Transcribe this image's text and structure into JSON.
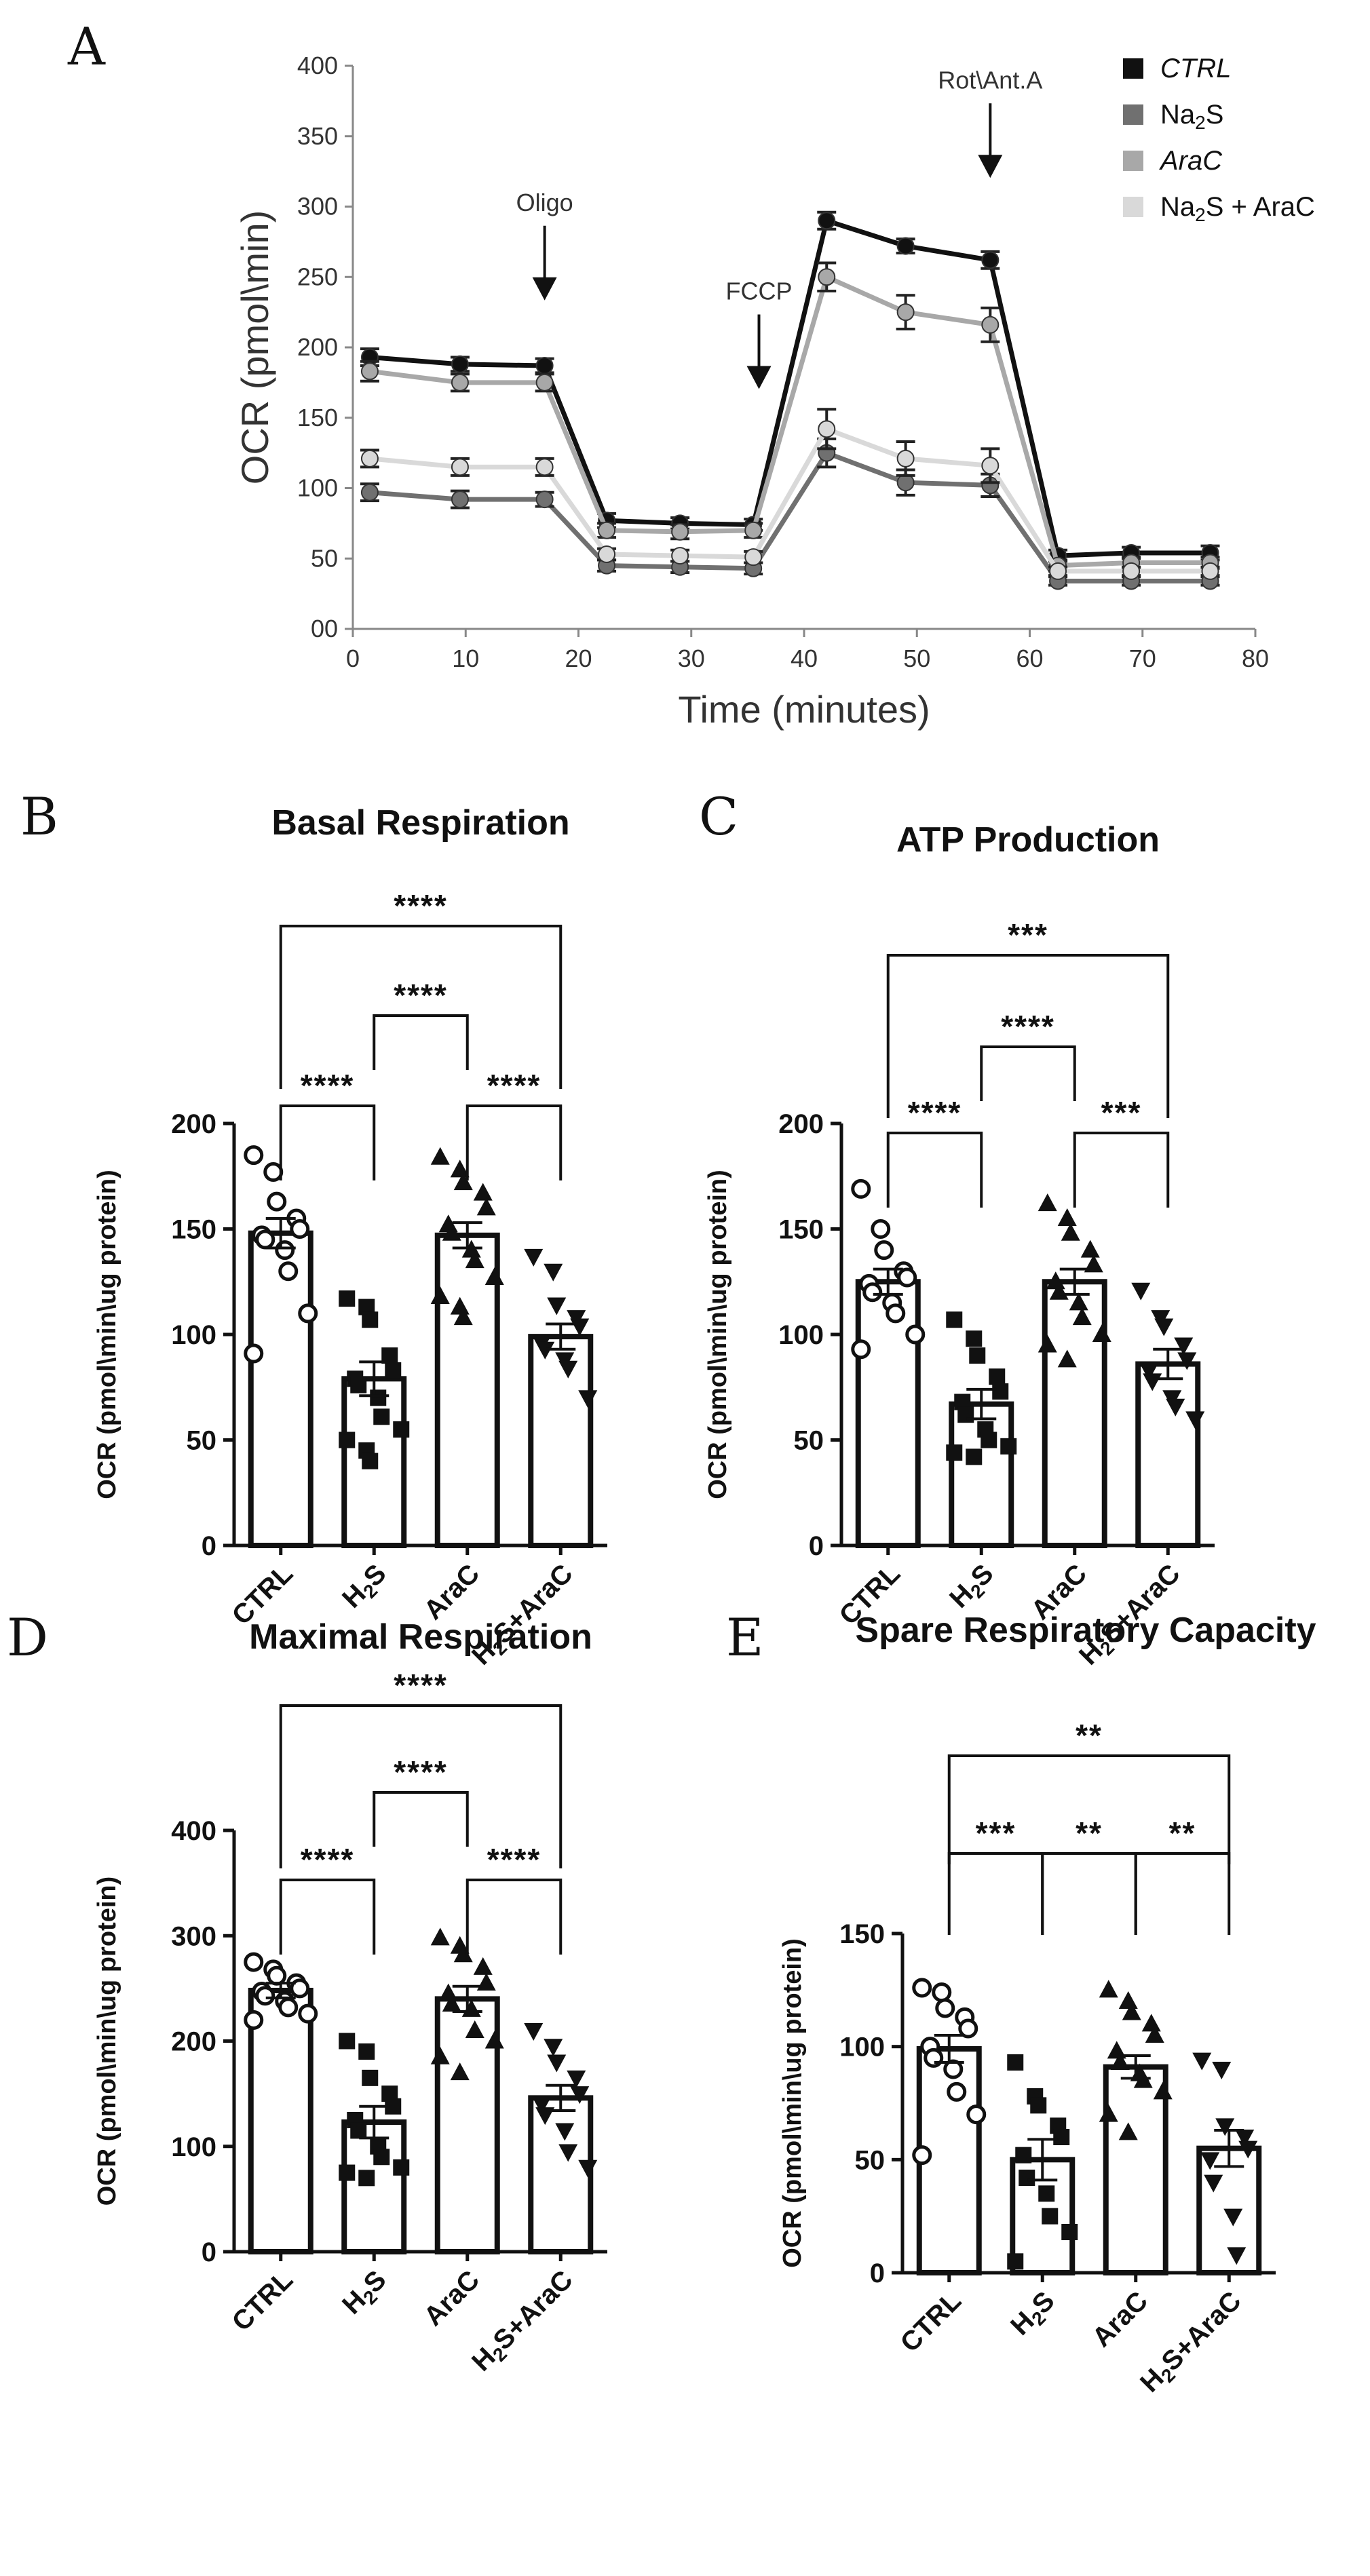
{
  "chart_data": [
    {
      "panel": "A",
      "type": "line",
      "title": "",
      "xlabel": "Time (minutes)",
      "ylabel": "OCR (pmol\\min)",
      "xlim": [
        0,
        80
      ],
      "ylim": [
        0,
        400
      ],
      "xticks": [
        "0",
        "10",
        "20",
        "30",
        "40",
        "50",
        "60",
        "70",
        "80"
      ],
      "yticks": [
        "00",
        "50",
        "100",
        "150",
        "200",
        "250",
        "300",
        "350",
        "400"
      ],
      "x": [
        1.5,
        9.5,
        17,
        22.5,
        29,
        35.5,
        42,
        49,
        56.5,
        62.5,
        69,
        76
      ],
      "legend_position": "top-right",
      "series": [
        {
          "name": "CTRL",
          "name_main": "CTRL",
          "name_sub": "",
          "name_tail": "",
          "italic": true,
          "color": "#111111",
          "values": [
            193,
            188,
            187,
            77,
            75,
            74,
            290,
            272,
            262,
            52,
            54,
            54
          ],
          "errors": [
            6,
            5,
            5,
            5,
            4,
            4,
            6,
            5,
            6,
            4,
            4,
            5
          ]
        },
        {
          "name": "Na2S",
          "name_main": "Na",
          "name_sub": "2",
          "name_tail": "S",
          "italic": false,
          "color": "#707070",
          "values": [
            97,
            92,
            92,
            45,
            44,
            43,
            125,
            104,
            102,
            34,
            34,
            34
          ],
          "errors": [
            6,
            6,
            5,
            4,
            4,
            4,
            10,
            9,
            8,
            3,
            3,
            3
          ]
        },
        {
          "name": "AraC",
          "name_main": "AraC",
          "name_sub": "",
          "name_tail": "",
          "italic": true,
          "color": "#a8a8a8",
          "values": [
            183,
            175,
            175,
            70,
            69,
            70,
            250,
            225,
            216,
            45,
            47,
            47
          ],
          "errors": [
            7,
            6,
            6,
            5,
            5,
            5,
            10,
            12,
            12,
            4,
            4,
            4
          ]
        },
        {
          "name": "Na2S + AraC",
          "name_main": "Na",
          "name_sub": "2",
          "name_tail": "S + AraC",
          "italic": false,
          "color": "#d9d9d9",
          "values": [
            121,
            115,
            115,
            53,
            52,
            51,
            142,
            121,
            116,
            41,
            41,
            41
          ],
          "errors": [
            6,
            6,
            6,
            4,
            4,
            4,
            14,
            12,
            12,
            3,
            3,
            3
          ]
        }
      ],
      "annotations": [
        {
          "label": "Oligo",
          "x": 17,
          "y": 243
        },
        {
          "label": "FCCP",
          "x": 36,
          "y": 180
        },
        {
          "label": "Rot\\Ant.A",
          "x": 56.5,
          "y": 330
        }
      ]
    },
    {
      "panel": "B",
      "type": "bar",
      "title": "Basal Respiration",
      "ylabel": "OCR (pmol\\min\\ug protein)",
      "ylim": [
        0,
        200
      ],
      "yticks": [
        "0",
        "50",
        "100",
        "150",
        "200"
      ],
      "categories": [
        {
          "main": "CTRL",
          "sub": "",
          "tail": ""
        },
        {
          "main": "H",
          "sub": "2",
          "tail": "S"
        },
        {
          "main": "AraC",
          "sub": "",
          "tail": ""
        },
        {
          "main": "H",
          "sub": "2",
          "tail": "S+AraC"
        }
      ],
      "means": [
        148,
        79,
        147,
        99
      ],
      "sem": [
        7,
        8,
        6,
        6
      ],
      "points": [
        [
          185,
          177,
          163,
          155,
          150,
          147,
          145,
          140,
          130,
          110,
          91
        ],
        [
          117,
          113,
          107,
          90,
          83,
          79,
          76,
          70,
          61,
          55,
          50,
          45,
          40
        ],
        [
          184,
          178,
          172,
          167,
          160,
          152,
          148,
          140,
          135,
          127,
          118,
          113,
          108
        ],
        [
          137,
          130,
          114,
          108,
          104,
          96,
          93,
          88,
          84,
          70
        ]
      ],
      "significance": [
        {
          "from": 0,
          "to": 3,
          "label": "****"
        },
        {
          "from": 1,
          "to": 2,
          "label": "****"
        },
        {
          "from": 0,
          "to": 1,
          "label": "****"
        },
        {
          "from": 2,
          "to": 3,
          "label": "****"
        }
      ]
    },
    {
      "panel": "C",
      "type": "bar",
      "title": "ATP Production",
      "ylabel": "OCR (pmol\\min\\ug protein)",
      "ylim": [
        0,
        200
      ],
      "yticks": [
        "0",
        "50",
        "100",
        "150",
        "200"
      ],
      "categories": [
        {
          "main": "CTRL",
          "sub": "",
          "tail": ""
        },
        {
          "main": "H",
          "sub": "2",
          "tail": "S"
        },
        {
          "main": "AraC",
          "sub": "",
          "tail": ""
        },
        {
          "main": "H",
          "sub": "2",
          "tail": "S+AraC"
        }
      ],
      "means": [
        125,
        67,
        125,
        86
      ],
      "sem": [
        6,
        7,
        6,
        7
      ],
      "points": [
        [
          169,
          150,
          140,
          130,
          127,
          124,
          120,
          115,
          110,
          100,
          93
        ],
        [
          107,
          98,
          90,
          80,
          73,
          68,
          62,
          55,
          50,
          47,
          44,
          42
        ],
        [
          162,
          155,
          148,
          140,
          133,
          125,
          120,
          115,
          108,
          100,
          95,
          88
        ],
        [
          121,
          108,
          104,
          95,
          88,
          83,
          78,
          70,
          66,
          60
        ]
      ],
      "significance": [
        {
          "from": 0,
          "to": 3,
          "label": "***"
        },
        {
          "from": 1,
          "to": 2,
          "label": "****"
        },
        {
          "from": 0,
          "to": 1,
          "label": "****"
        },
        {
          "from": 2,
          "to": 3,
          "label": "***"
        }
      ]
    },
    {
      "panel": "D",
      "type": "bar",
      "title": "Maximal Respiration",
      "ylabel": "OCR (pmol\\min\\ug protein)",
      "ylim": [
        0,
        400
      ],
      "yticks": [
        "0",
        "100",
        "200",
        "300",
        "400"
      ],
      "categories": [
        {
          "main": "CTRL",
          "sub": "",
          "tail": ""
        },
        {
          "main": "H",
          "sub": "2",
          "tail": "S"
        },
        {
          "main": "AraC",
          "sub": "",
          "tail": ""
        },
        {
          "main": "H",
          "sub": "2",
          "tail": "S+AraC"
        }
      ],
      "means": [
        248,
        123,
        240,
        146
      ],
      "sem": [
        7,
        15,
        12,
        12
      ],
      "points": [
        [
          275,
          268,
          262,
          255,
          250,
          247,
          243,
          238,
          232,
          226,
          220
        ],
        [
          200,
          190,
          165,
          150,
          138,
          125,
          115,
          100,
          90,
          80,
          75,
          70
        ],
        [
          298,
          290,
          282,
          270,
          255,
          245,
          235,
          230,
          210,
          200,
          185,
          170
        ],
        [
          210,
          195,
          180,
          165,
          150,
          140,
          130,
          115,
          95,
          80
        ]
      ],
      "significance": [
        {
          "from": 0,
          "to": 3,
          "label": "****"
        },
        {
          "from": 1,
          "to": 2,
          "label": "****"
        },
        {
          "from": 0,
          "to": 1,
          "label": "****"
        },
        {
          "from": 2,
          "to": 3,
          "label": "****"
        }
      ]
    },
    {
      "panel": "E",
      "type": "bar",
      "title": "Spare Respiratory Capacity",
      "ylabel": "OCR (pmol\\min\\ug protein)",
      "ylim": [
        0,
        150
      ],
      "yticks": [
        "0",
        "50",
        "100",
        "150"
      ],
      "categories": [
        {
          "main": "CTRL",
          "sub": "",
          "tail": ""
        },
        {
          "main": "H",
          "sub": "2",
          "tail": "S"
        },
        {
          "main": "AraC",
          "sub": "",
          "tail": ""
        },
        {
          "main": "H",
          "sub": "2",
          "tail": "S+AraC"
        }
      ],
      "means": [
        99,
        50,
        91,
        55
      ],
      "sem": [
        6,
        9,
        5,
        8
      ],
      "points": [
        [
          126,
          124,
          117,
          113,
          108,
          100,
          95,
          90,
          80,
          70,
          52
        ],
        [
          93,
          78,
          74,
          65,
          60,
          52,
          42,
          35,
          25,
          18,
          5
        ],
        [
          125,
          120,
          115,
          110,
          105,
          98,
          93,
          88,
          85,
          80,
          70,
          62
        ],
        [
          94,
          90,
          65,
          60,
          55,
          50,
          40,
          25,
          8
        ]
      ],
      "significance": [
        {
          "from": 0,
          "to": 3,
          "label": "**"
        },
        {
          "from": 0,
          "to": 1,
          "label": "***"
        },
        {
          "from": 1,
          "to": 2,
          "label": "**"
        },
        {
          "from": 2,
          "to": 3,
          "label": "**"
        }
      ]
    }
  ]
}
